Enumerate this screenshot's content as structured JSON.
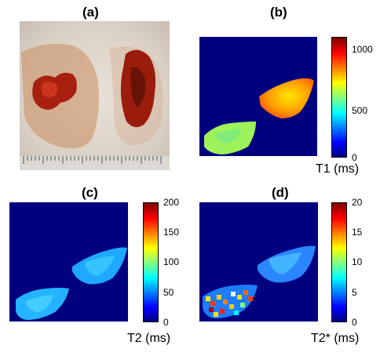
{
  "panels": {
    "a": {
      "label": "(a)"
    },
    "b": {
      "label": "(b)",
      "colorbar_title": "T1 (ms)",
      "ticks": [
        "0",
        "500",
        "1000"
      ]
    },
    "c": {
      "label": "(c)",
      "colorbar_title": "T2 (ms)",
      "ticks": [
        "0",
        "50",
        "100",
        "150",
        "200"
      ]
    },
    "d": {
      "label": "(d)",
      "colorbar_title": "T2* (ms)",
      "ticks": [
        "0",
        "5",
        "10",
        "15",
        "20"
      ]
    }
  },
  "colormap": "jet",
  "background_color": "#00007f"
}
